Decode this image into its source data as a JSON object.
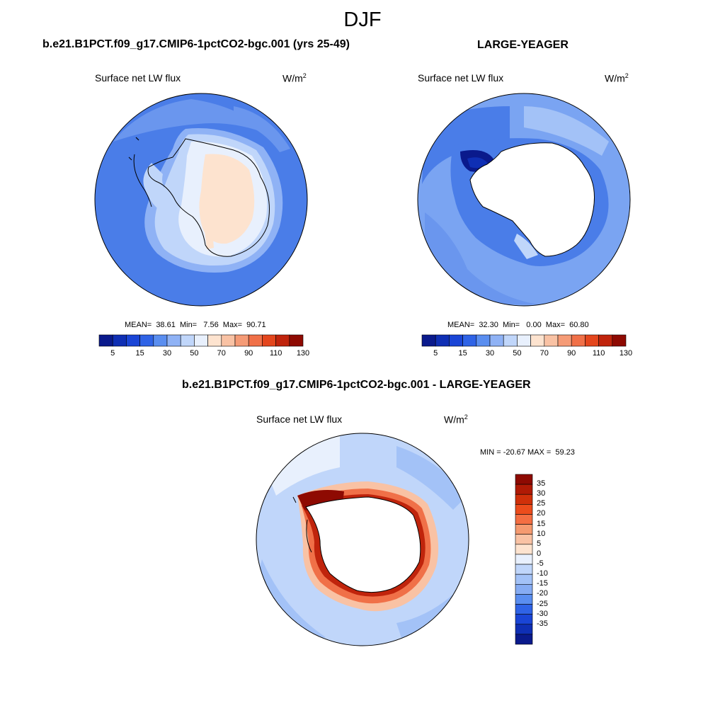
{
  "figure": {
    "title": "DJF"
  },
  "panels": [
    {
      "title": "b.e21.B1PCT.f09_g17.CMIP6-1pctCO2-bgc.001 (yrs 25-49)",
      "variable": "Surface net LW flux",
      "units_base": "W/m",
      "units_exp": "2",
      "stats": "MEAN=  38.61  Min=   7.56  Max=  90.71",
      "colorbar_ticks": [
        "5",
        "15",
        "30",
        "50",
        "70",
        "90",
        "110",
        "130"
      ]
    },
    {
      "title": "LARGE-YEAGER",
      "variable": "Surface net LW flux",
      "units_base": "W/m",
      "units_exp": "2",
      "stats": "MEAN=  32.30  Min=   0.00  Max=  60.80",
      "colorbar_ticks": [
        "5",
        "15",
        "30",
        "50",
        "70",
        "90",
        "110",
        "130"
      ]
    },
    {
      "title": "b.e21.B1PCT.f09_g17.CMIP6-1pctCO2-bgc.001 - LARGE-YEAGER",
      "variable": "Surface net LW flux",
      "units_base": "W/m",
      "units_exp": "2",
      "stats": "MIN = -20.67 MAX =  59.23",
      "colorbar_ticks": [
        "35",
        "30",
        "25",
        "20",
        "15",
        "10",
        "5",
        "0",
        "-5",
        "-10",
        "-15",
        "-20",
        "-25",
        "-30",
        "-35"
      ]
    }
  ],
  "colors": {
    "abs_scale": [
      "#0a1a8c",
      "#0f2fb4",
      "#1a45d6",
      "#2f63e6",
      "#5a8ef0",
      "#8fb2f5",
      "#c0d6fa",
      "#e8f0fd",
      "#fde3cf",
      "#f9c2a4",
      "#f59b76",
      "#f07048",
      "#e4461d",
      "#c0240c",
      "#8e0a02"
    ],
    "diff_scale": [
      "#8e0a02",
      "#b01a05",
      "#d0300a",
      "#ec4c1c",
      "#f46e42",
      "#f59a70",
      "#f9c2a4",
      "#fde3cf",
      "#e8f0fd",
      "#c0d6fa",
      "#a3c2f7",
      "#86acf3",
      "#5a8ef0",
      "#2f63e6",
      "#1a45d6",
      "#0f2fb4",
      "#0a1a8c"
    ],
    "ocean_ctrl": "#4a7de8",
    "ocean_obs": "#7aa4f2",
    "land": "#ffffff"
  }
}
